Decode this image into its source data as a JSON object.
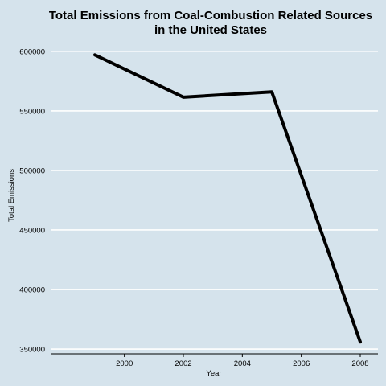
{
  "chart_data": {
    "type": "line",
    "title": [
      "Total Emissions from Coal-Combustion Related Sources",
      "in the United States"
    ],
    "xlabel": "Year",
    "ylabel": "Total Emissions",
    "x": [
      1999,
      2002,
      2005,
      2008
    ],
    "series": [
      {
        "values": [
          597000,
          561500,
          566000,
          356000
        ]
      }
    ],
    "xlim": [
      1997.5,
      2008.6
    ],
    "ylim": [
      346000,
      608000
    ],
    "xticks": [
      2000,
      2002,
      2004,
      2006,
      2008
    ],
    "yticks": [
      350000,
      400000,
      450000,
      500000,
      550000,
      600000
    ],
    "grid": true,
    "background_color": "#d5e3ec",
    "grid_color": "#ffffff",
    "line_color": "#000000"
  }
}
